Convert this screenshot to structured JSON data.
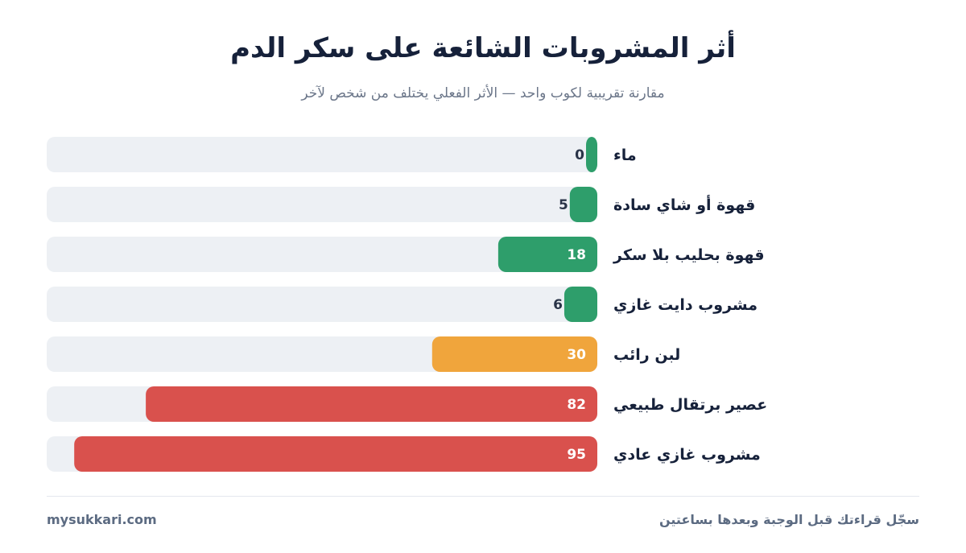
{
  "header": {
    "title": "أثر المشروبات الشائعة على سكر الدم",
    "subtitle": "مقارنة تقريبية لكوب واحد — الأثر الفعلي يختلف من شخص لآخر"
  },
  "chart_data": {
    "type": "bar",
    "orientation": "horizontal",
    "categories": [
      "ماء",
      "قهوة أو شاي سادة",
      "قهوة بحليب بلا سكر",
      "مشروب دايت غازي",
      "لبن رائب",
      "عصير برتقال طبيعي",
      "مشروب غازي عادي"
    ],
    "values": [
      0,
      5,
      18,
      6,
      30,
      82,
      95
    ],
    "colors": [
      "#2e9e6b",
      "#2e9e6b",
      "#2e9e6b",
      "#2e9e6b",
      "#f0a53c",
      "#d9514d",
      "#d9514d"
    ],
    "xlim": [
      0,
      100
    ],
    "grid": false,
    "legend": "none",
    "title": "أثر المشروبات الشائعة على سكر الدم",
    "xlabel": "",
    "ylabel": ""
  },
  "footer": {
    "site": "mysukkari.com",
    "note": "سجّل قراءتك قبل الوجبة وبعدها بساعتين"
  },
  "colors": {
    "track": "#edf0f4",
    "low": "#2e9e6b",
    "medium": "#f0a53c",
    "high": "#d9514d",
    "text_dark": "#16213a",
    "text_muted": "#5c6b82"
  }
}
